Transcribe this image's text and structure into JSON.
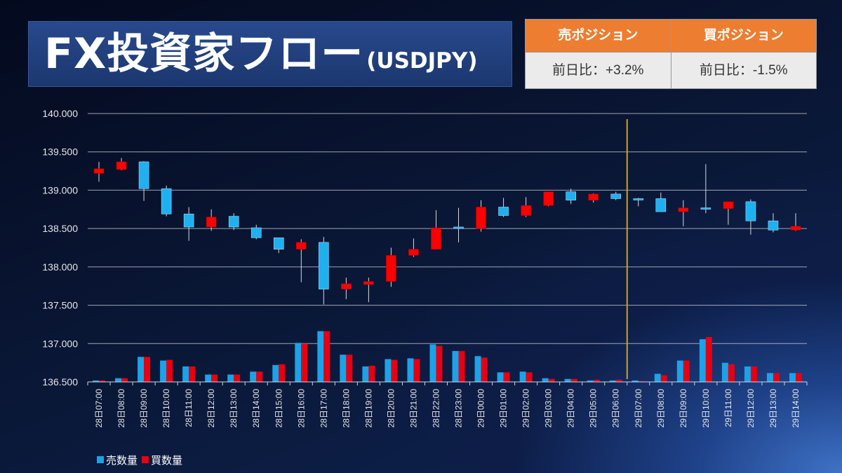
{
  "header": {
    "title_main": "FX投資家フロー",
    "title_sub": "(USDJPY)"
  },
  "positions_table": {
    "columns": [
      {
        "header": "売ポジション",
        "value": "前日比：+3.2%"
      },
      {
        "header": "買ポジション",
        "value": "前日比：-1.5%"
      }
    ]
  },
  "colors": {
    "title_box": "#1e3c7a",
    "table_header": "#ed7d31",
    "background": "#0a1838"
  },
  "chart_data": {
    "type": "bar",
    "categories": [
      "28日07:00",
      "28日08:00",
      "28日09:00",
      "28日10:00",
      "28日11:00",
      "28日12:00",
      "28日13:00",
      "28日14:00",
      "28日15:00",
      "28日16:00",
      "28日17:00",
      "28日18:00",
      "28日19:00",
      "28日20:00",
      "28日21:00",
      "28日22:00",
      "28日23:00",
      "29日00:00",
      "29日01:00",
      "29日02:00",
      "29日03:00",
      "29日04:00",
      "29日05:00",
      "29日06:00",
      "29日07:00",
      "29日08:00",
      "29日09:00",
      "29日10:00",
      "29日11:00",
      "29日12:00",
      "29日13:00",
      "29日14:00"
    ],
    "y_ticks": [
      "140.000",
      "139.500",
      "139.000",
      "138.500",
      "138.000",
      "137.500",
      "137.000",
      "136.500"
    ],
    "ylim": [
      136.5,
      140.0
    ],
    "grid": true,
    "legend": "bottom-left",
    "candles": {
      "open": [
        139.22,
        139.27,
        139.37,
        139.02,
        138.69,
        138.52,
        138.66,
        138.51,
        138.38,
        138.23,
        138.32,
        137.71,
        137.77,
        137.81,
        138.15,
        138.23,
        138.52,
        138.5,
        138.78,
        138.67,
        138.8,
        138.98,
        138.87,
        138.95,
        138.89,
        138.89,
        138.72,
        138.77,
        138.76,
        138.85,
        138.6,
        138.48
      ],
      "high": [
        139.37,
        139.42,
        139.38,
        139.06,
        138.78,
        138.75,
        138.7,
        138.55,
        138.38,
        138.36,
        138.39,
        137.86,
        137.86,
        138.25,
        138.37,
        138.74,
        138.77,
        138.87,
        138.9,
        138.91,
        138.98,
        139.02,
        138.96,
        138.98,
        138.9,
        138.97,
        138.87,
        139.34,
        138.85,
        138.88,
        138.7,
        138.7
      ],
      "low": [
        139.11,
        139.26,
        138.86,
        138.66,
        138.34,
        138.47,
        138.48,
        138.36,
        138.18,
        137.8,
        137.51,
        137.58,
        137.54,
        137.74,
        138.13,
        138.23,
        138.32,
        138.46,
        138.65,
        138.65,
        138.79,
        138.82,
        138.84,
        138.87,
        138.79,
        138.72,
        138.53,
        138.7,
        138.55,
        138.42,
        138.45,
        138.47
      ],
      "close": [
        139.28,
        139.37,
        139.02,
        138.69,
        138.52,
        138.65,
        138.52,
        138.38,
        138.23,
        138.32,
        137.71,
        137.78,
        137.81,
        138.15,
        138.23,
        138.51,
        138.5,
        138.78,
        138.67,
        138.8,
        138.98,
        138.87,
        138.95,
        138.89,
        138.88,
        138.72,
        138.77,
        138.76,
        138.85,
        138.6,
        138.48,
        138.53
      ]
    },
    "series": [
      {
        "name": "売数量",
        "values": [
          2,
          5,
          34,
          29,
          21,
          10,
          10,
          14,
          23,
          53,
          69,
          37,
          21,
          31,
          32,
          51,
          42,
          35,
          13,
          14,
          5,
          4,
          2,
          2,
          2,
          11,
          29,
          58,
          26,
          21,
          12,
          12
        ]
      },
      {
        "name": "買数量",
        "values": [
          2,
          5,
          34,
          30,
          21,
          10,
          10,
          14,
          24,
          52,
          69,
          37,
          22,
          30,
          31,
          49,
          42,
          33,
          13,
          13,
          4,
          4,
          3,
          3,
          1,
          9,
          29,
          61,
          24,
          21,
          12,
          12
        ]
      }
    ],
    "divider_after": "29日06:00",
    "colors": {
      "up": "#ff0000",
      "down": "#1fb0f0",
      "wick": "#d9d9d9",
      "sell_volume": "#1aa3e8",
      "buy_volume": "#e60012",
      "divider": "#d4a017",
      "grid": "#d0d4dc",
      "axis_text": "#e6e6e6"
    }
  }
}
